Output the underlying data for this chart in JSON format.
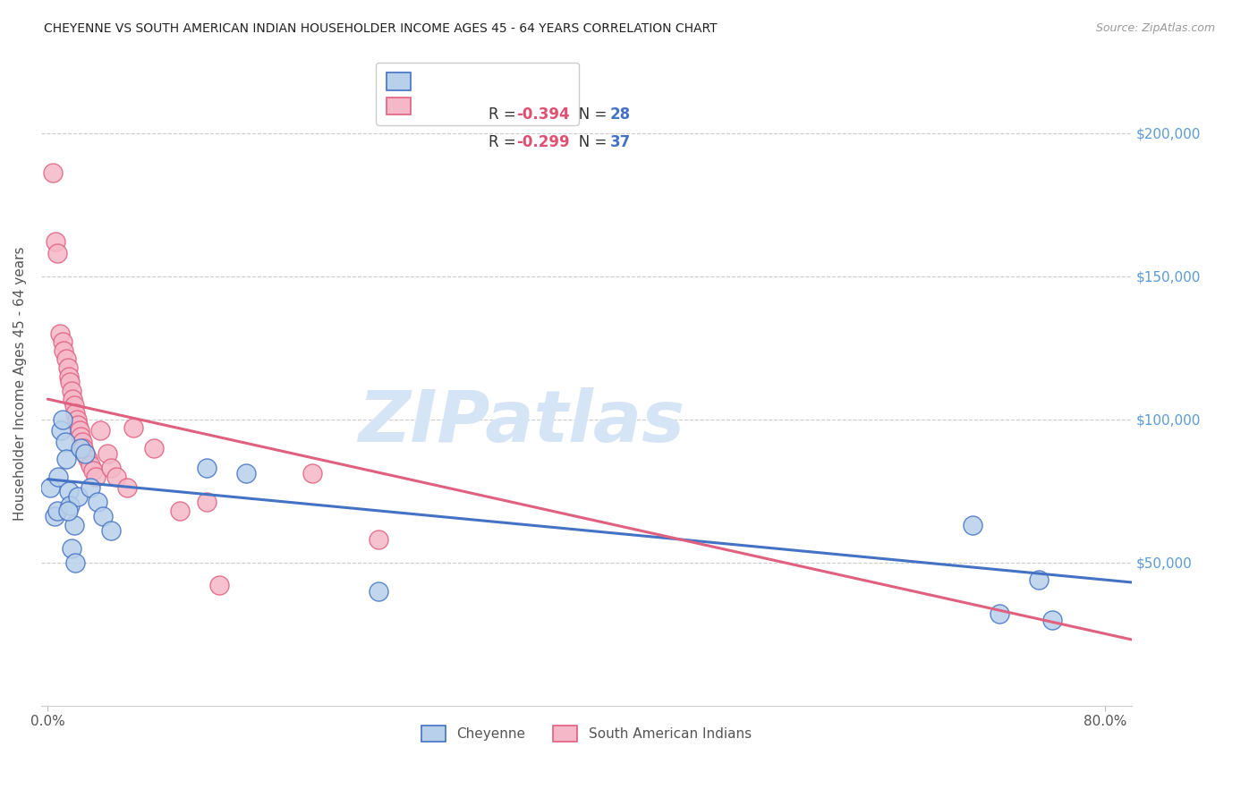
{
  "title": "CHEYENNE VS SOUTH AMERICAN INDIAN HOUSEHOLDER INCOME AGES 45 - 64 YEARS CORRELATION CHART",
  "source": "Source: ZipAtlas.com",
  "ylabel": "Householder Income Ages 45 - 64 years",
  "cheyenne_label": "Cheyenne",
  "sa_label": "South American Indians",
  "legend_r1": "-0.394",
  "legend_n1": "28",
  "legend_r2": "-0.299",
  "legend_n2": "37",
  "cheyenne_color_face": "#b8d0ea",
  "cheyenne_color_edge": "#4472c4",
  "sa_color_face": "#f5b8c8",
  "sa_color_edge": "#e06080",
  "cheyenne_line_color": "#4472c4",
  "sa_line_color": "#e06080",
  "ytick_values": [
    50000,
    100000,
    150000,
    200000
  ],
  "ytick_labels": [
    "$50,000",
    "$100,000",
    "$150,000",
    "$200,000"
  ],
  "ymin": 0,
  "ymax": 225000,
  "xmin": -0.005,
  "xmax": 0.82,
  "xtick_left": "0.0%",
  "xtick_right": "80.0%",
  "background_color": "#ffffff",
  "grid_color": "#cccccc",
  "title_color": "#222222",
  "source_color": "#999999",
  "right_label_color": "#5b9bd5",
  "watermark_color": "#d5e5f5",
  "cheyenne_x": [
    0.002,
    0.005,
    0.007,
    0.008,
    0.01,
    0.011,
    0.013,
    0.014,
    0.016,
    0.017,
    0.018,
    0.02,
    0.021,
    0.023,
    0.025,
    0.028,
    0.032,
    0.038,
    0.042,
    0.048,
    0.12,
    0.15,
    0.25,
    0.7,
    0.72,
    0.75,
    0.76,
    0.015
  ],
  "cheyenne_y": [
    76000,
    66000,
    68000,
    80000,
    96000,
    100000,
    92000,
    86000,
    75000,
    70000,
    55000,
    63000,
    50000,
    73000,
    90000,
    88000,
    76000,
    71000,
    66000,
    61000,
    83000,
    81000,
    40000,
    63000,
    32000,
    44000,
    30000,
    68000
  ],
  "sa_indian_x": [
    0.004,
    0.006,
    0.007,
    0.009,
    0.011,
    0.012,
    0.014,
    0.015,
    0.016,
    0.017,
    0.018,
    0.019,
    0.02,
    0.021,
    0.022,
    0.023,
    0.024,
    0.025,
    0.026,
    0.027,
    0.028,
    0.03,
    0.032,
    0.034,
    0.036,
    0.04,
    0.045,
    0.048,
    0.052,
    0.06,
    0.065,
    0.08,
    0.1,
    0.12,
    0.13,
    0.2,
    0.25
  ],
  "sa_indian_y": [
    186000,
    162000,
    158000,
    130000,
    127000,
    124000,
    121000,
    118000,
    115000,
    113000,
    110000,
    107000,
    105000,
    102000,
    100000,
    98000,
    96000,
    94000,
    92000,
    90000,
    88000,
    86000,
    84000,
    82000,
    80000,
    96000,
    88000,
    83000,
    80000,
    76000,
    97000,
    90000,
    68000,
    71000,
    42000,
    81000,
    58000
  ],
  "cheyenne_trend_x": [
    0.0,
    0.82
  ],
  "cheyenne_trend_y": [
    79000,
    43000
  ],
  "sa_trend_x": [
    0.0,
    0.82
  ],
  "sa_trend_y": [
    107000,
    23000
  ]
}
